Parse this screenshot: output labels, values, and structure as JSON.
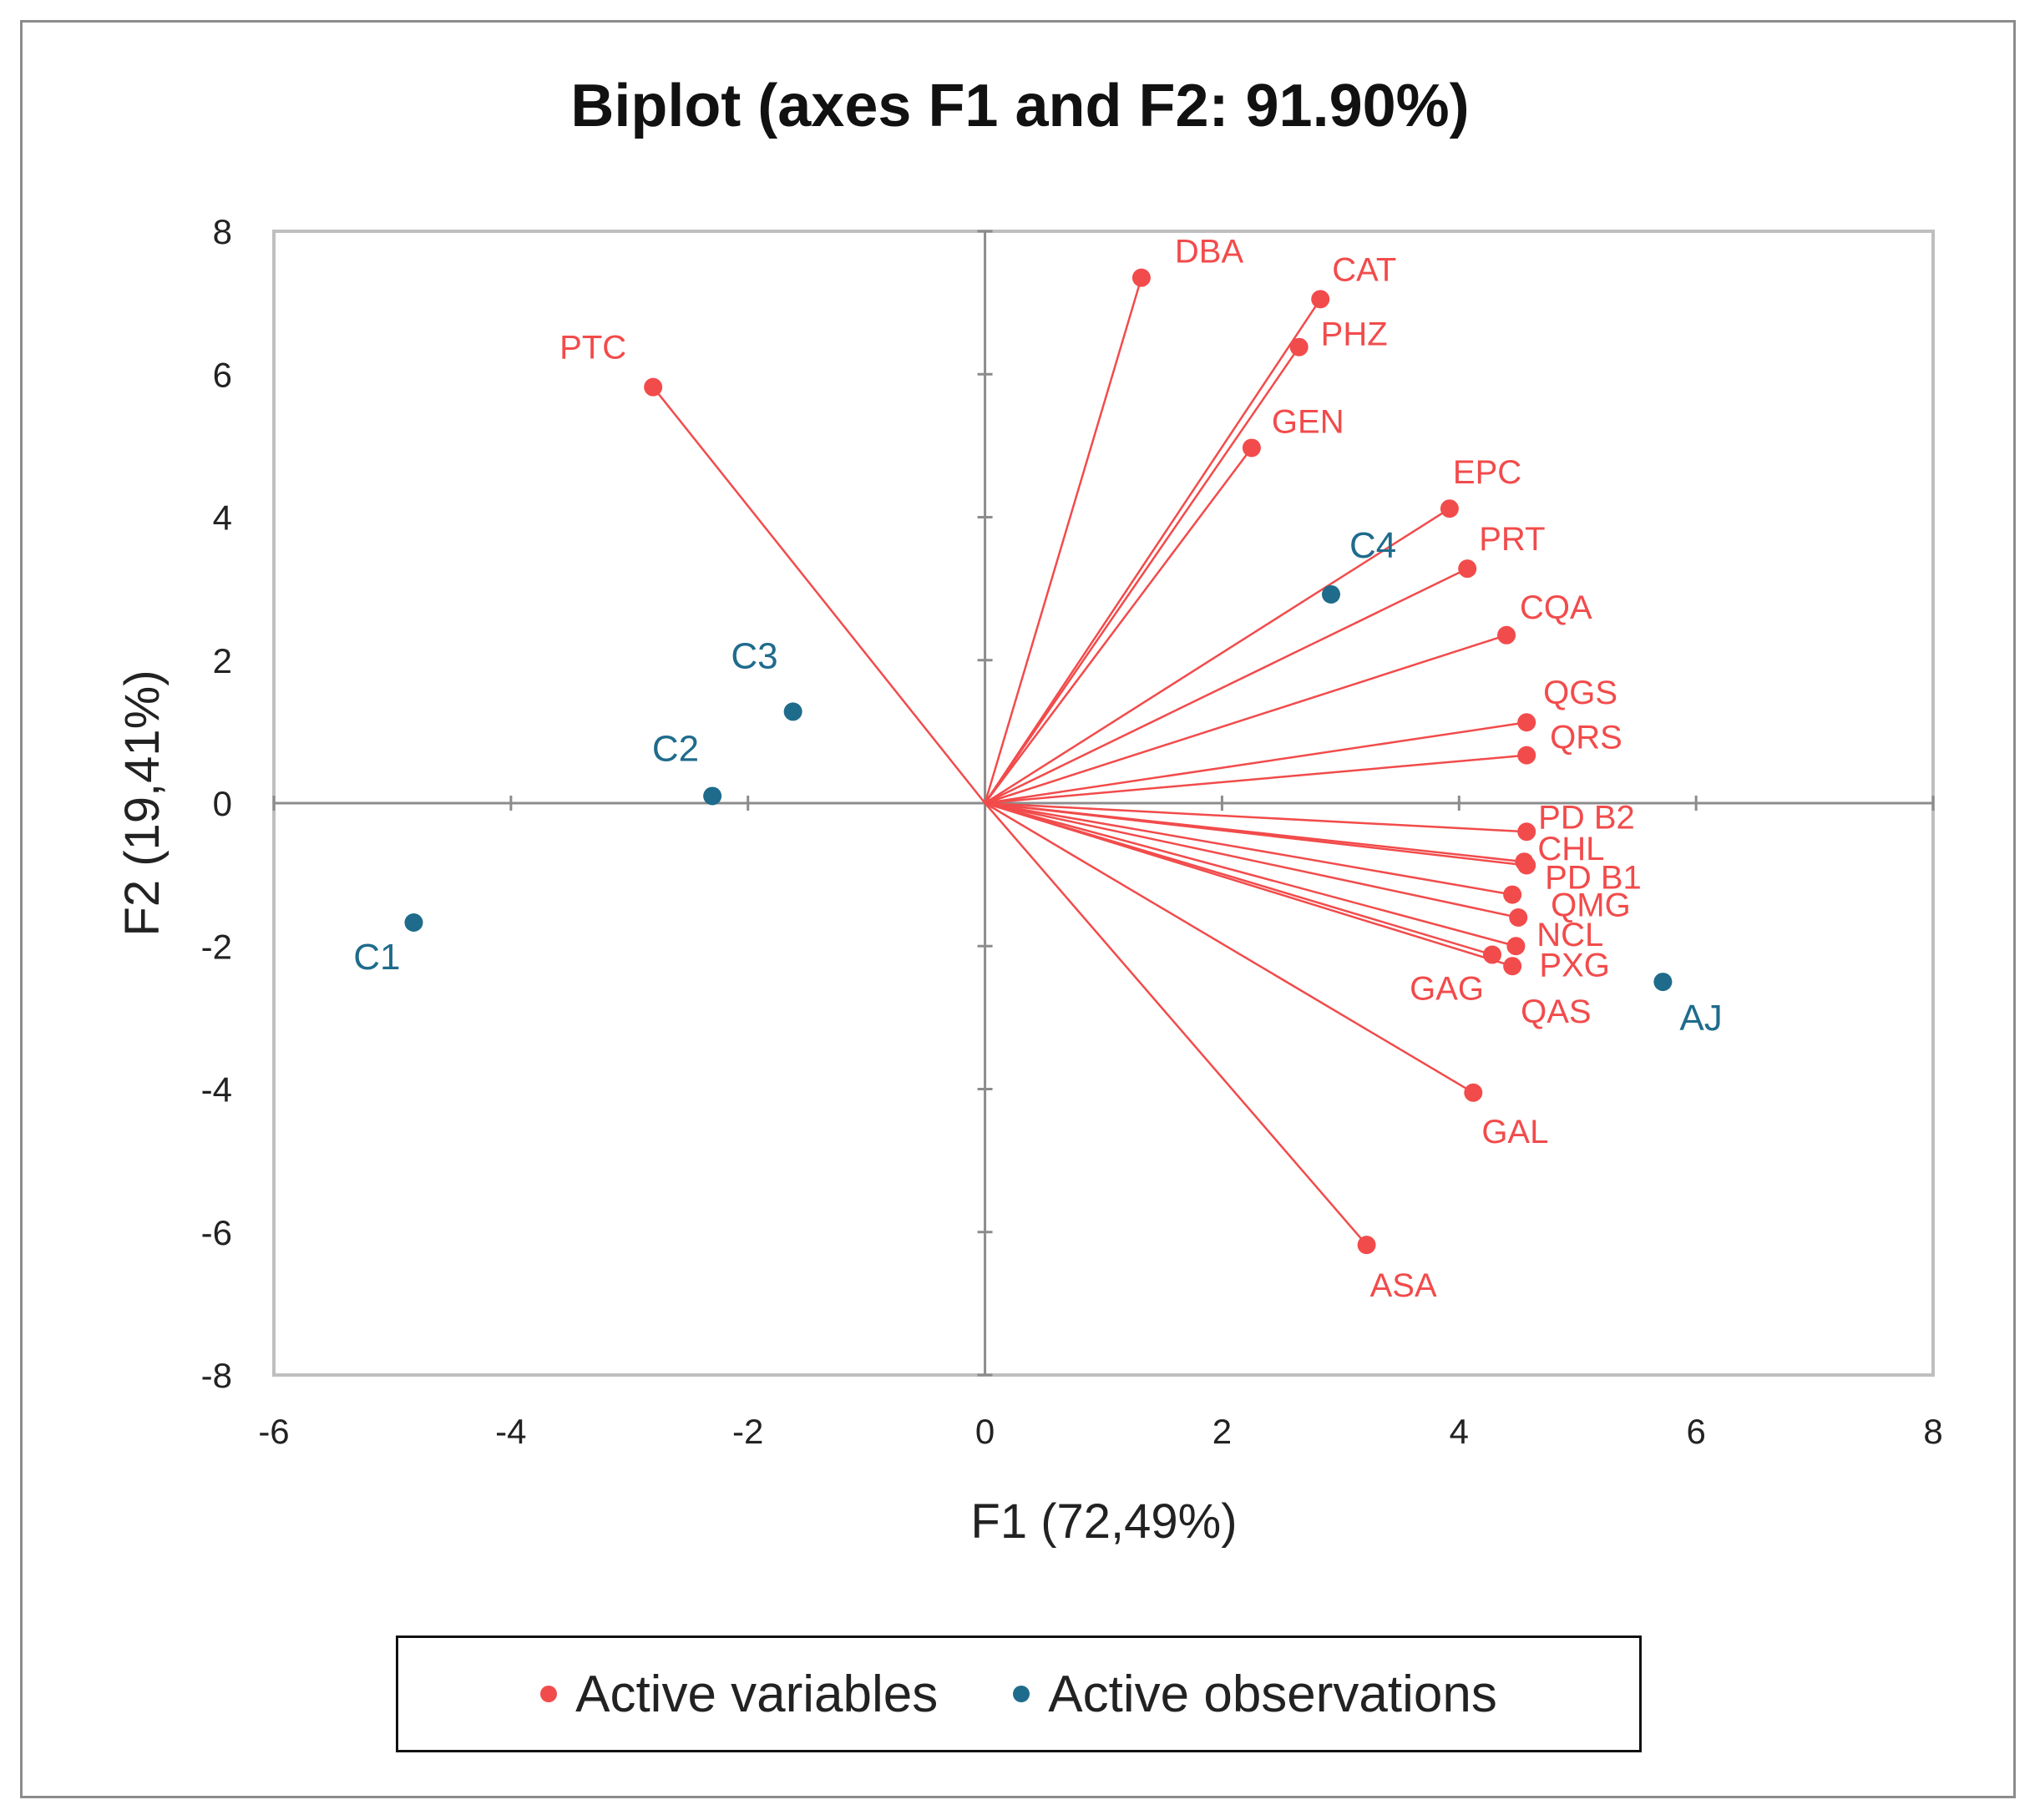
{
  "chart_data": {
    "type": "scatter",
    "title": "Biplot (axes F1 and F2: 91.90%)",
    "xlabel": "F1 (72,49%)",
    "ylabel": "F2 (19,41%)",
    "xlim": [
      -6,
      8
    ],
    "ylim": [
      -8,
      8
    ],
    "xticks": [
      "-6",
      "-4",
      "-2",
      "0",
      "2",
      "4",
      "6",
      "8"
    ],
    "yticks": [
      "-8",
      "-6",
      "-4",
      "-2",
      "0",
      "2",
      "4",
      "6",
      "8"
    ],
    "colors": {
      "variables": "#f24b4b",
      "observations": "#1f6b8c"
    },
    "legend": [
      {
        "label": "Active variables",
        "color": "#f24b4b"
      },
      {
        "label": "Active observations",
        "color": "#1f6b8c"
      }
    ],
    "series": [
      {
        "name": "Active variables",
        "points": [
          {
            "label": "DBA",
            "x": 1.32,
            "y": 7.35
          },
          {
            "label": "CAT",
            "x": 2.83,
            "y": 7.05
          },
          {
            "label": "PHZ",
            "x": 2.65,
            "y": 6.38
          },
          {
            "label": "PTC",
            "x": -2.8,
            "y": 5.82
          },
          {
            "label": "GEN",
            "x": 2.25,
            "y": 4.97
          },
          {
            "label": "EPC",
            "x": 3.92,
            "y": 4.12
          },
          {
            "label": "PRT",
            "x": 4.07,
            "y": 3.28
          },
          {
            "label": "CQA",
            "x": 4.4,
            "y": 2.35
          },
          {
            "label": "QGS",
            "x": 4.57,
            "y": 1.13
          },
          {
            "label": "QRS",
            "x": 4.57,
            "y": 0.67
          },
          {
            "label": "PD B2",
            "x": 4.57,
            "y": -0.4
          },
          {
            "label": "CHL",
            "x": 4.55,
            "y": -0.82
          },
          {
            "label": "PD B1",
            "x": 4.57,
            "y": -0.87
          },
          {
            "label": "QMG",
            "x": 4.45,
            "y": -1.28
          },
          {
            "label": "NCL",
            "x": 4.5,
            "y": -1.6
          },
          {
            "label": "PXG",
            "x": 4.48,
            "y": -2.0
          },
          {
            "label": "QAS",
            "x": 4.45,
            "y": -2.28
          },
          {
            "label": "GAG",
            "x": 4.28,
            "y": -2.12
          },
          {
            "label": "GAL",
            "x": 4.12,
            "y": -4.05
          },
          {
            "label": "ASA",
            "x": 3.22,
            "y": -6.18
          }
        ]
      },
      {
        "name": "Active observations",
        "points": [
          {
            "label": "C1",
            "x": -4.82,
            "y": -1.67
          },
          {
            "label": "C2",
            "x": -2.3,
            "y": 0.1
          },
          {
            "label": "C3",
            "x": -1.62,
            "y": 1.28
          },
          {
            "label": "C4",
            "x": 2.92,
            "y": 2.92
          },
          {
            "label": "AJ",
            "x": 5.72,
            "y": -2.5
          }
        ]
      }
    ]
  }
}
